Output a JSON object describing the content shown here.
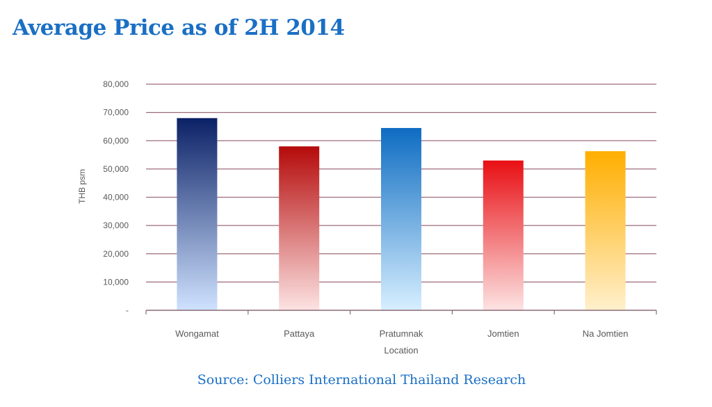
{
  "page": {
    "title": "Average Price as of 2H 2014",
    "source": "Source: Colliers International Thailand Research"
  },
  "chart_data": {
    "type": "bar",
    "title": "Average Price as of 2H 2014",
    "xlabel": "Location",
    "ylabel": "THB psm",
    "categories": [
      "Wongamat",
      "Pattaya",
      "Pratumnak",
      "Jomtien",
      "Na Jomtien"
    ],
    "values": [
      68000,
      58000,
      64500,
      53000,
      56300
    ],
    "ylim": [
      0,
      80000
    ],
    "yticks": [
      0,
      10000,
      20000,
      30000,
      40000,
      50000,
      60000,
      70000,
      80000
    ],
    "ytick_labels": [
      "-",
      "10,000",
      "20,000",
      "30,000",
      "40,000",
      "50,000",
      "60,000",
      "70,000",
      "80,000"
    ],
    "grid": true,
    "legend": "none",
    "colors": {
      "gridline": "#9e6b78",
      "axis": "#8c6a74",
      "tick_text": "#595959",
      "bars": [
        {
          "top": "#0b2166",
          "bottom": "#cfe2ff"
        },
        {
          "top": "#b50a0a",
          "bottom": "#fde3e3"
        },
        {
          "top": "#0e6cc2",
          "bottom": "#d7efff"
        },
        {
          "top": "#e80f14",
          "bottom": "#fde3e3"
        },
        {
          "top": "#ffae00",
          "bottom": "#fff0cc"
        }
      ]
    }
  }
}
